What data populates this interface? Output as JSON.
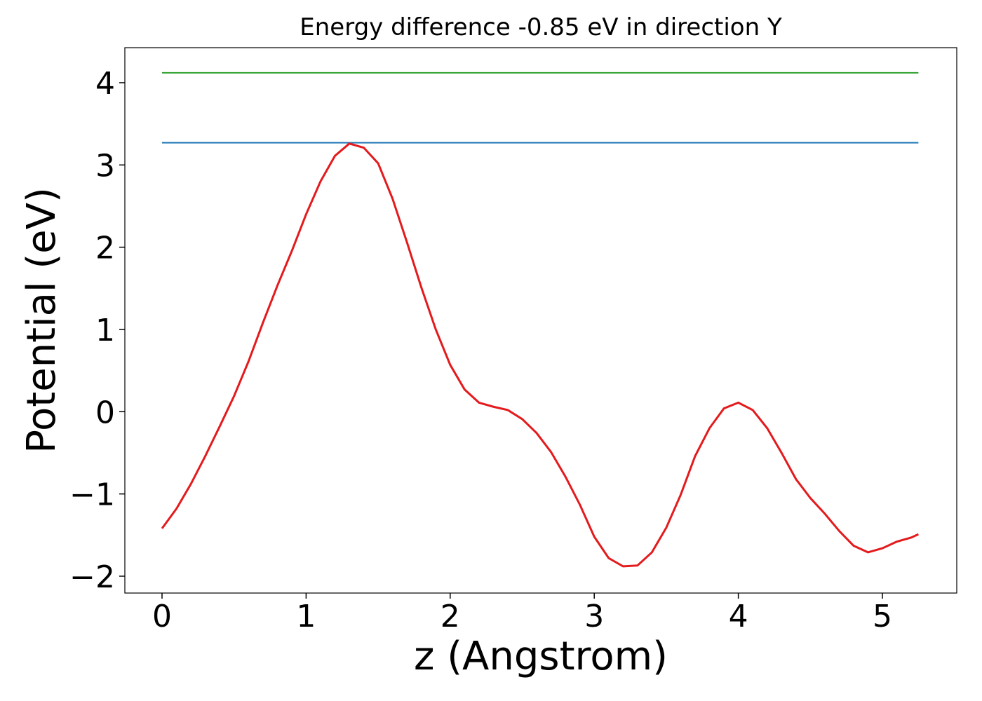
{
  "chart_data": {
    "type": "line",
    "title": "Energy difference -0.85 eV in direction Y",
    "xlabel": "z (Angstrom)",
    "ylabel": "Potential (eV)",
    "xlim": [
      -0.258,
      5.516
    ],
    "ylim": [
      -2.205,
      4.426
    ],
    "xticks": [
      0,
      1,
      2,
      3,
      4,
      5
    ],
    "yticks": [
      {
        "value": -2,
        "label": "−2"
      },
      {
        "value": -1,
        "label": "−1"
      },
      0,
      1,
      2,
      3,
      4
    ],
    "grid": false,
    "series": [
      {
        "color": "#2ca02c",
        "x": [
          0,
          5.25
        ],
        "values": [
          4.12,
          4.12
        ]
      },
      {
        "color": "#1f77b4",
        "x": [
          0,
          5.25
        ],
        "values": [
          3.27,
          3.27
        ]
      },
      {
        "color": "#e41a1c",
        "x": [
          0,
          0.1,
          0.2,
          0.3,
          0.4,
          0.5,
          0.6,
          0.7,
          0.8,
          0.9,
          1.0,
          1.1,
          1.2,
          1.3,
          1.4,
          1.5,
          1.6,
          1.7,
          1.8,
          1.9,
          2.0,
          2.1,
          2.2,
          2.3,
          2.4,
          2.5,
          2.6,
          2.7,
          2.8,
          2.9,
          3.0,
          3.1,
          3.2,
          3.3,
          3.4,
          3.5,
          3.6,
          3.7,
          3.8,
          3.9,
          4.0,
          4.1,
          4.2,
          4.3,
          4.4,
          4.5,
          4.6,
          4.7,
          4.8,
          4.9,
          5.0,
          5.1,
          5.2,
          5.25
        ],
        "values": [
          -1.42,
          -1.18,
          -0.88,
          -0.54,
          -0.18,
          0.19,
          0.61,
          1.08,
          1.53,
          1.95,
          2.4,
          2.8,
          3.11,
          3.26,
          3.21,
          3.02,
          2.59,
          2.06,
          1.51,
          1.0,
          0.57,
          0.27,
          0.11,
          0.06,
          0.02,
          -0.09,
          -0.26,
          -0.49,
          -0.79,
          -1.13,
          -1.52,
          -1.78,
          -1.88,
          -1.87,
          -1.71,
          -1.41,
          -1.01,
          -0.54,
          -0.2,
          0.04,
          0.11,
          0.02,
          -0.2,
          -0.5,
          -0.82,
          -1.05,
          -1.24,
          -1.45,
          -1.63,
          -1.71,
          -1.66,
          -1.58,
          -1.53,
          -1.49
        ]
      }
    ]
  }
}
